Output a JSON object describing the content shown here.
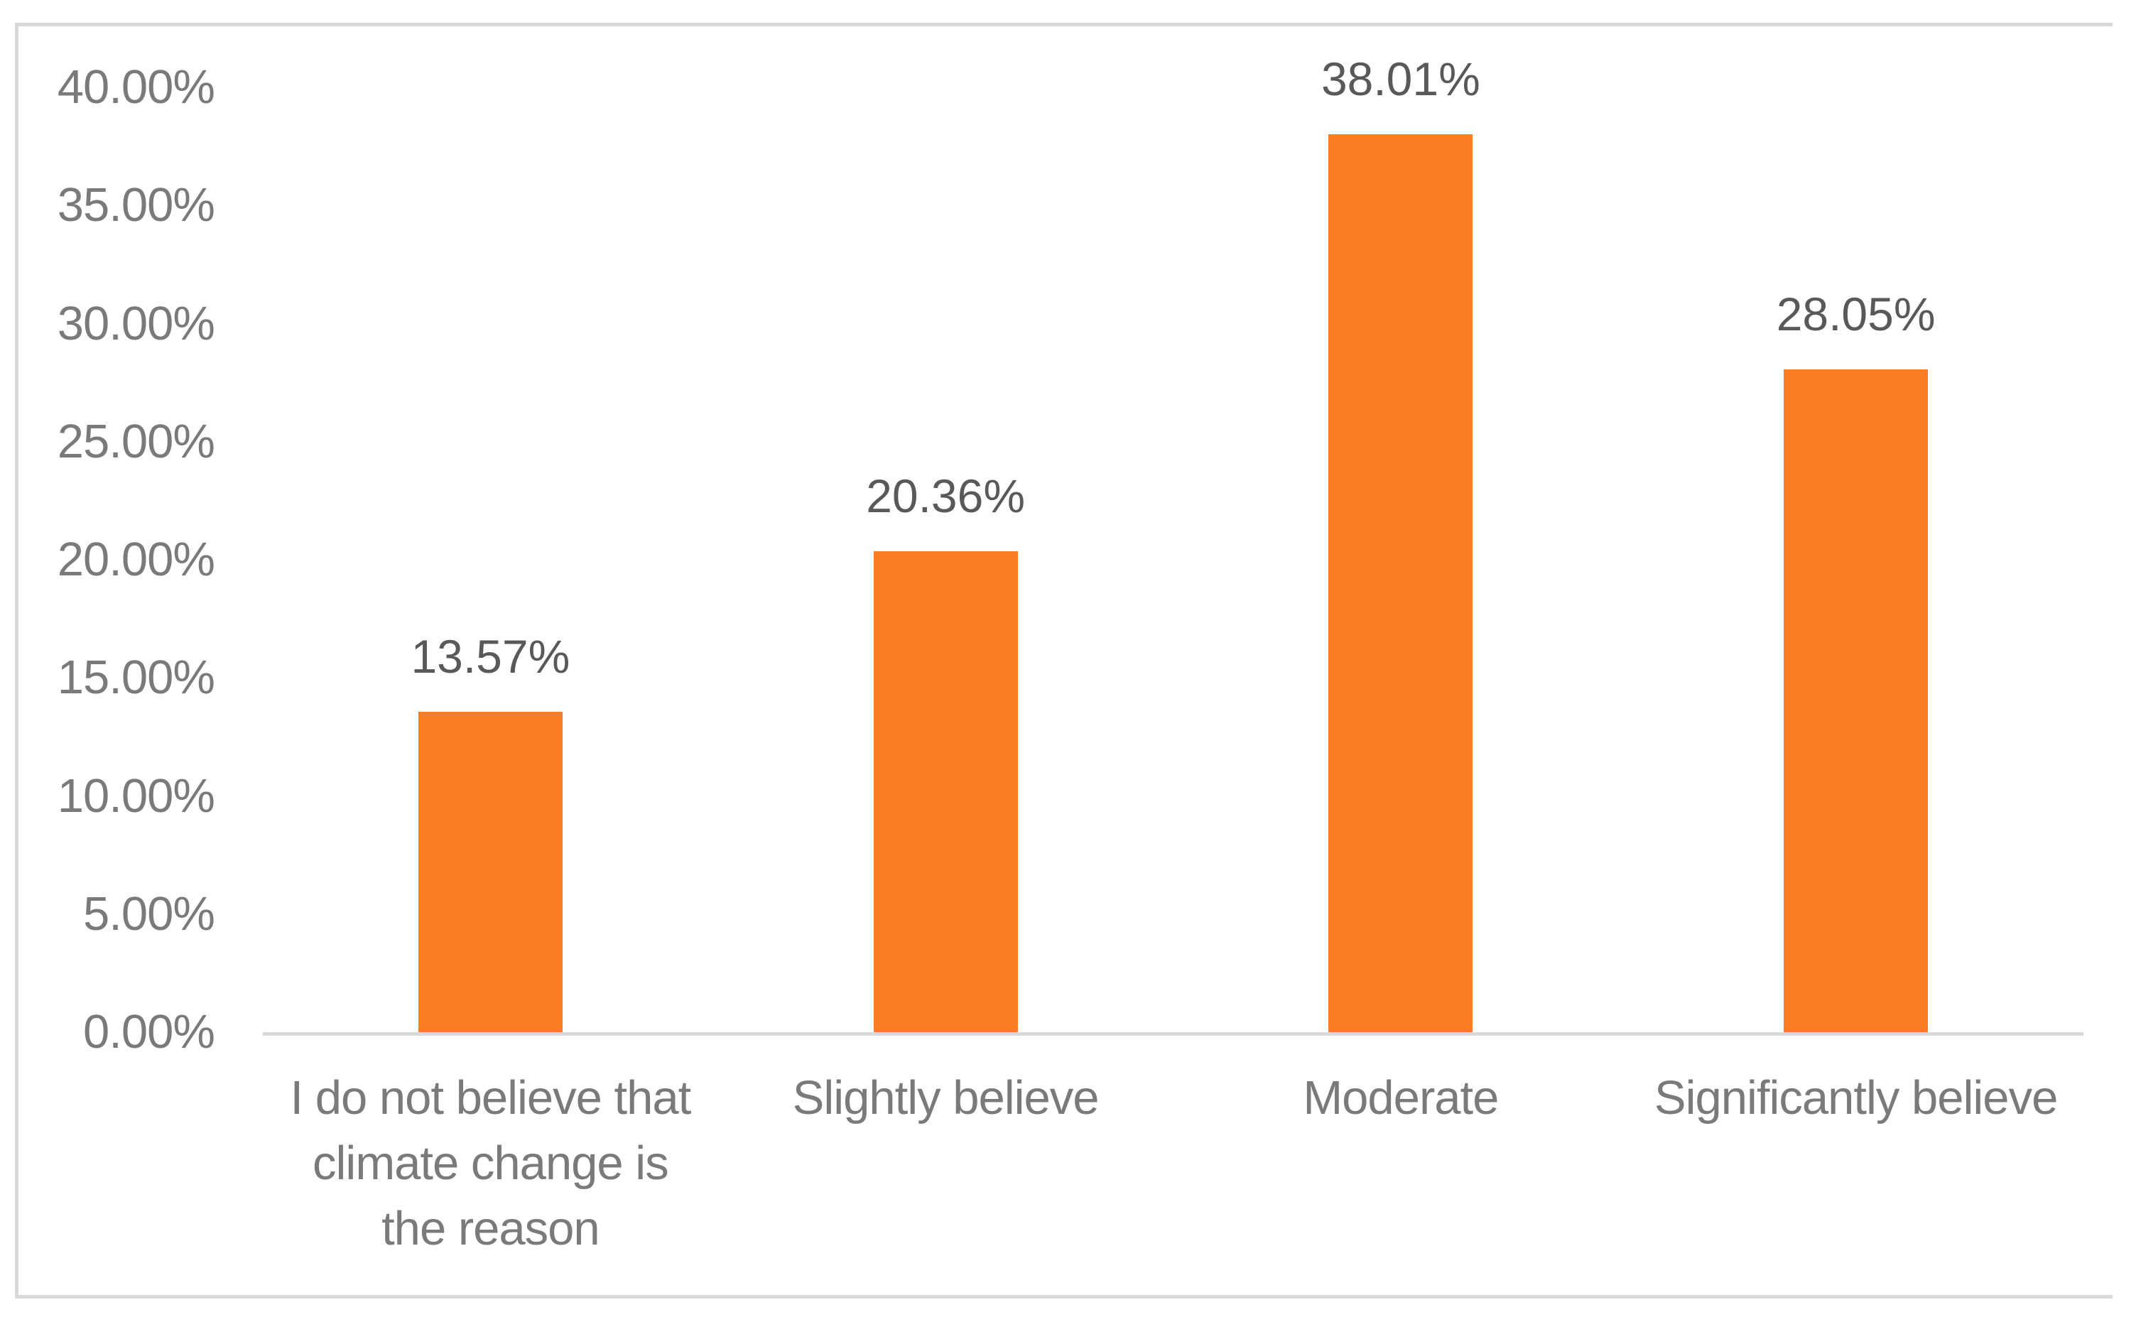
{
  "chart_data": {
    "type": "bar",
    "title": "",
    "xlabel": "",
    "ylabel": "",
    "grid": false,
    "legend": "none",
    "categories": [
      "I do not believe that climate change is the reason",
      "Slightly believe",
      "Moderate",
      "Significantly believe"
    ],
    "category_line_breaks": [
      [
        "I do not believe that",
        "climate change is",
        "the reason"
      ],
      [
        "Slightly believe"
      ],
      [
        "Moderate"
      ],
      [
        "Significantly believe"
      ]
    ],
    "values": [
      13.57,
      20.36,
      38.01,
      28.05
    ],
    "data_labels": [
      "13.57%",
      "20.36%",
      "38.01%",
      "28.05%"
    ],
    "ytick_labels": [
      "0.00%",
      "5.00%",
      "10.00%",
      "15.00%",
      "20.00%",
      "25.00%",
      "30.00%",
      "35.00%",
      "40.00%"
    ],
    "ytick_values": [
      0,
      5,
      10,
      15,
      20,
      25,
      30,
      35,
      40
    ],
    "ylim": [
      0,
      40
    ],
    "colors": {
      "bar": "#FB7D26",
      "axis_line": "#D9D9D9",
      "chart_border": "#D9D9D9",
      "tick_label_text": "#7A7A7A",
      "category_label_text": "#7A7A7A",
      "data_label_text": "#595959",
      "background": "#FFFFFF"
    }
  }
}
